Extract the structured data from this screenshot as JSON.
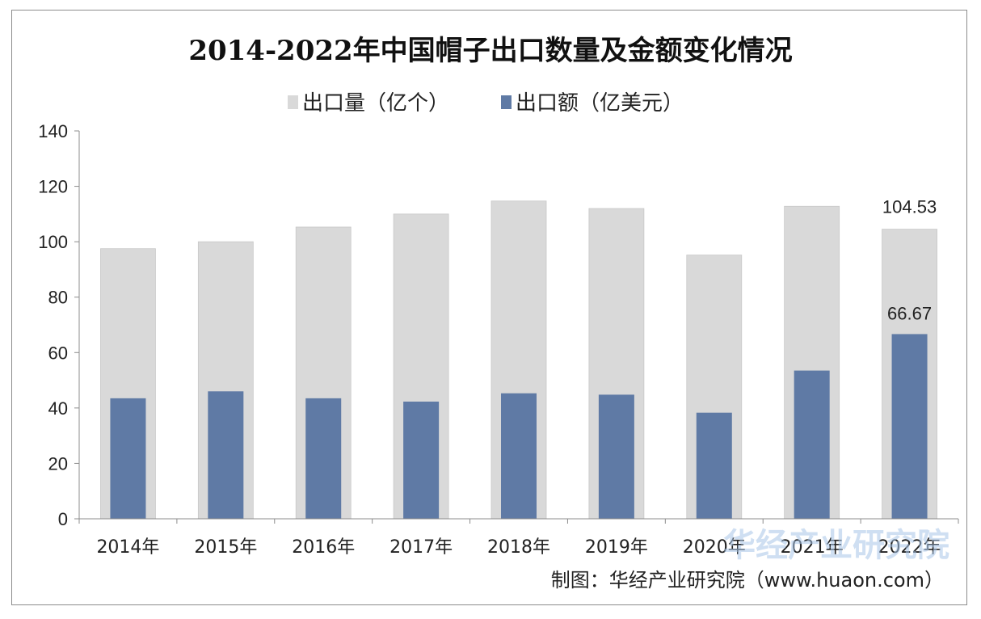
{
  "chart_data": {
    "type": "bar",
    "title": "2014-2022年中国帽子出口数量及金额变化情况",
    "categories": [
      "2014年",
      "2015年",
      "2016年",
      "2017年",
      "2018年",
      "2019年",
      "2020年",
      "2021年",
      "2022年"
    ],
    "series": [
      {
        "name": "出口量（亿个）",
        "color": "#d9d9d9",
        "values": [
          97.5,
          100,
          105.3,
          110,
          114.7,
          112,
          95.2,
          112.8,
          104.53
        ]
      },
      {
        "name": "出口额（亿美元）",
        "color": "#5f7aa5",
        "values": [
          43.5,
          46,
          43.5,
          42.3,
          45.3,
          44.8,
          38.3,
          53.5,
          66.67
        ]
      }
    ],
    "data_labels": [
      "104.53",
      "66.67"
    ],
    "ylim": [
      0,
      140
    ],
    "yticks": [
      0,
      20,
      40,
      60,
      80,
      100,
      120,
      140
    ],
    "legend_position": "top-center",
    "grid": false
  },
  "source": "制图：华经产业研究院（www.huaon.com）",
  "watermark": "华经产业研究院"
}
